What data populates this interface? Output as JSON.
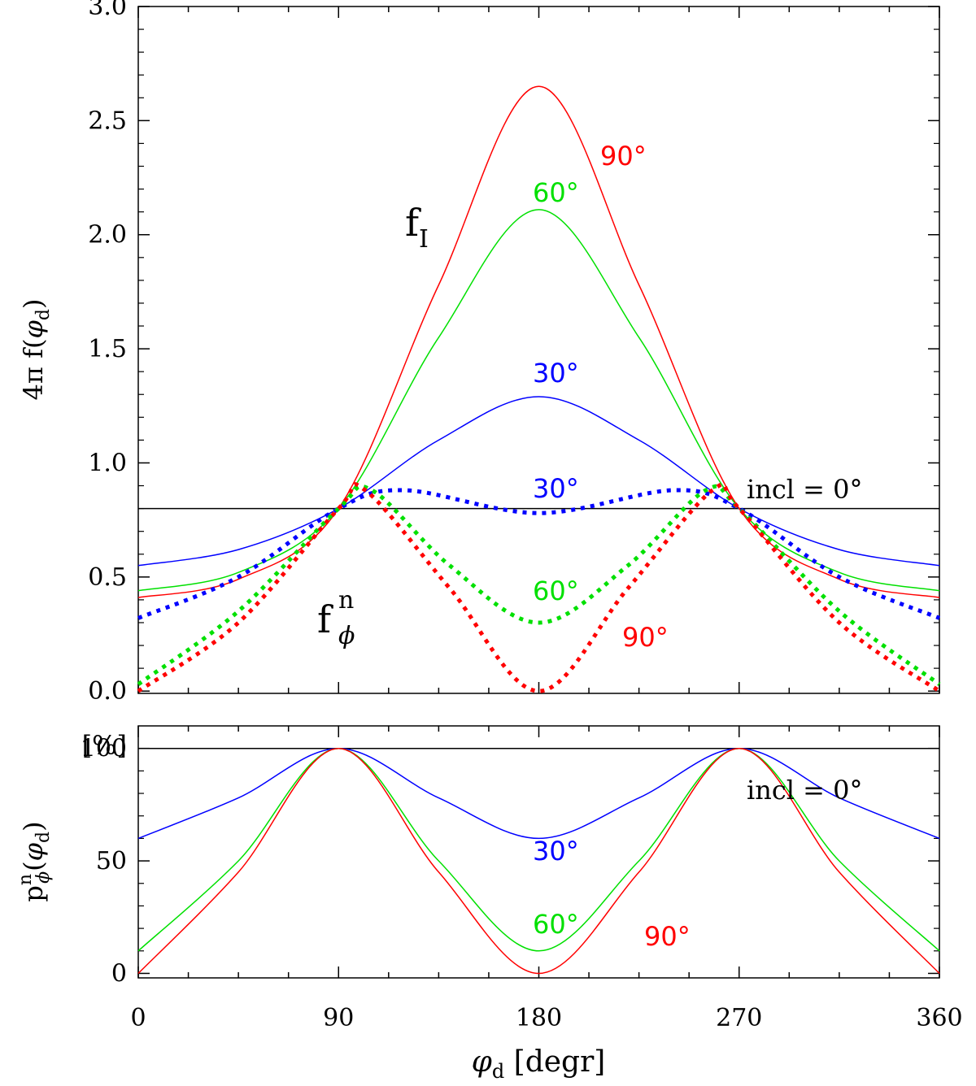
{
  "colors": {
    "i0": "#000000",
    "i30": "#0000ff",
    "i60": "#00e000",
    "i90": "#ff0000"
  },
  "chart_data": [
    {
      "type": "line",
      "panel": "top",
      "xlim": [
        0,
        360
      ],
      "ylim": [
        -0.01,
        3.0
      ],
      "x_ticks": [
        0,
        90,
        180,
        270,
        360
      ],
      "y_ticks": [
        "0.0",
        "0.5",
        "1.0",
        "1.5",
        "2.0",
        "2.5",
        "3.0"
      ],
      "ylabel": {
        "base": "4π f(",
        "var": "φ",
        "sub": "d",
        "close": ")"
      },
      "labels": {
        "f_I_base": "f",
        "f_I_sub": "I",
        "f_phi_base": "f",
        "f_phi_sup": "n",
        "f_phi_sub": "ϕ",
        "incl0": "incl = 0°",
        "i30_solid": "30°",
        "i60_solid": "60°",
        "i90_solid": "90°",
        "i30_dotted": "30°",
        "i60_dotted": "60°",
        "i90_dotted": "90°"
      },
      "series": [
        {
          "name": "f_I incl=0",
          "style": "solid",
          "color": "#000000",
          "x": [
            0,
            360
          ],
          "values": [
            0.8,
            0.8
          ]
        },
        {
          "name": "f_I incl=30",
          "style": "solid",
          "color": "#0000ff",
          "x": [
            0,
            45,
            90,
            135,
            180,
            225,
            270,
            315,
            360
          ],
          "values": [
            0.55,
            0.62,
            0.8,
            1.1,
            1.29,
            1.1,
            0.8,
            0.62,
            0.55
          ]
        },
        {
          "name": "f_I incl=60",
          "style": "solid",
          "color": "#00e000",
          "x": [
            0,
            45,
            90,
            135,
            180,
            225,
            270,
            315,
            360
          ],
          "values": [
            0.44,
            0.52,
            0.8,
            1.55,
            2.11,
            1.55,
            0.8,
            0.52,
            0.44
          ]
        },
        {
          "name": "f_I incl=90",
          "style": "solid",
          "color": "#ff0000",
          "x": [
            0,
            45,
            90,
            135,
            180,
            225,
            270,
            315,
            360
          ],
          "values": [
            0.41,
            0.49,
            0.8,
            1.78,
            2.65,
            1.78,
            0.8,
            0.49,
            0.41
          ]
        },
        {
          "name": "f_phi^n incl=30",
          "style": "dotted",
          "color": "#0000ff",
          "x": [
            0,
            45,
            90,
            120,
            180,
            240,
            270,
            315,
            360
          ],
          "values": [
            0.32,
            0.5,
            0.8,
            0.88,
            0.78,
            0.88,
            0.8,
            0.5,
            0.32
          ]
        },
        {
          "name": "f_phi^n incl=60",
          "style": "dotted",
          "color": "#00e000",
          "x": [
            0,
            45,
            90,
            105,
            140,
            180,
            220,
            255,
            270,
            315,
            360
          ],
          "values": [
            0.03,
            0.35,
            0.8,
            0.88,
            0.55,
            0.3,
            0.55,
            0.88,
            0.8,
            0.35,
            0.03
          ]
        },
        {
          "name": "f_phi^n incl=90",
          "style": "dotted",
          "color": "#ff0000",
          "x": [
            0,
            45,
            90,
            102,
            140,
            180,
            220,
            258,
            270,
            315,
            360
          ],
          "values": [
            0.0,
            0.3,
            0.8,
            0.88,
            0.45,
            0.0,
            0.45,
            0.88,
            0.8,
            0.3,
            0.0
          ]
        }
      ]
    },
    {
      "type": "line",
      "panel": "bottom",
      "xlim": [
        0,
        360
      ],
      "ylim": [
        -2,
        110
      ],
      "x_ticks": [
        0,
        90,
        180,
        270,
        360
      ],
      "y_ticks": [
        "0",
        "50",
        "100"
      ],
      "unit_label": "[%]",
      "ylabel": {
        "base": "p",
        "sup": "n",
        "sub": "ϕ",
        "open": "(",
        "var": "φ",
        "var_sub": "d",
        "close": ")"
      },
      "xlabel": {
        "var": "φ",
        "sub": "d",
        "rest": " [degr]"
      },
      "labels": {
        "incl0": "incl = 0°",
        "i30": "30°",
        "i60": "60°",
        "i90": "90°"
      },
      "series": [
        {
          "name": "p incl=0",
          "color": "#000000",
          "x": [
            0,
            360
          ],
          "values": [
            100,
            100
          ]
        },
        {
          "name": "p incl=30",
          "color": "#0000ff",
          "x": [
            0,
            45,
            90,
            135,
            180,
            225,
            270,
            315,
            360
          ],
          "values": [
            60,
            78,
            100,
            78,
            60,
            78,
            100,
            78,
            60
          ]
        },
        {
          "name": "p incl=60",
          "color": "#00e000",
          "x": [
            0,
            45,
            90,
            135,
            180,
            225,
            270,
            315,
            360
          ],
          "values": [
            10,
            50,
            100,
            50,
            10,
            50,
            100,
            50,
            10
          ]
        },
        {
          "name": "p incl=90",
          "color": "#ff0000",
          "x": [
            0,
            45,
            90,
            135,
            180,
            225,
            270,
            315,
            360
          ],
          "values": [
            0,
            45,
            100,
            45,
            0,
            45,
            100,
            45,
            0
          ]
        }
      ]
    }
  ]
}
